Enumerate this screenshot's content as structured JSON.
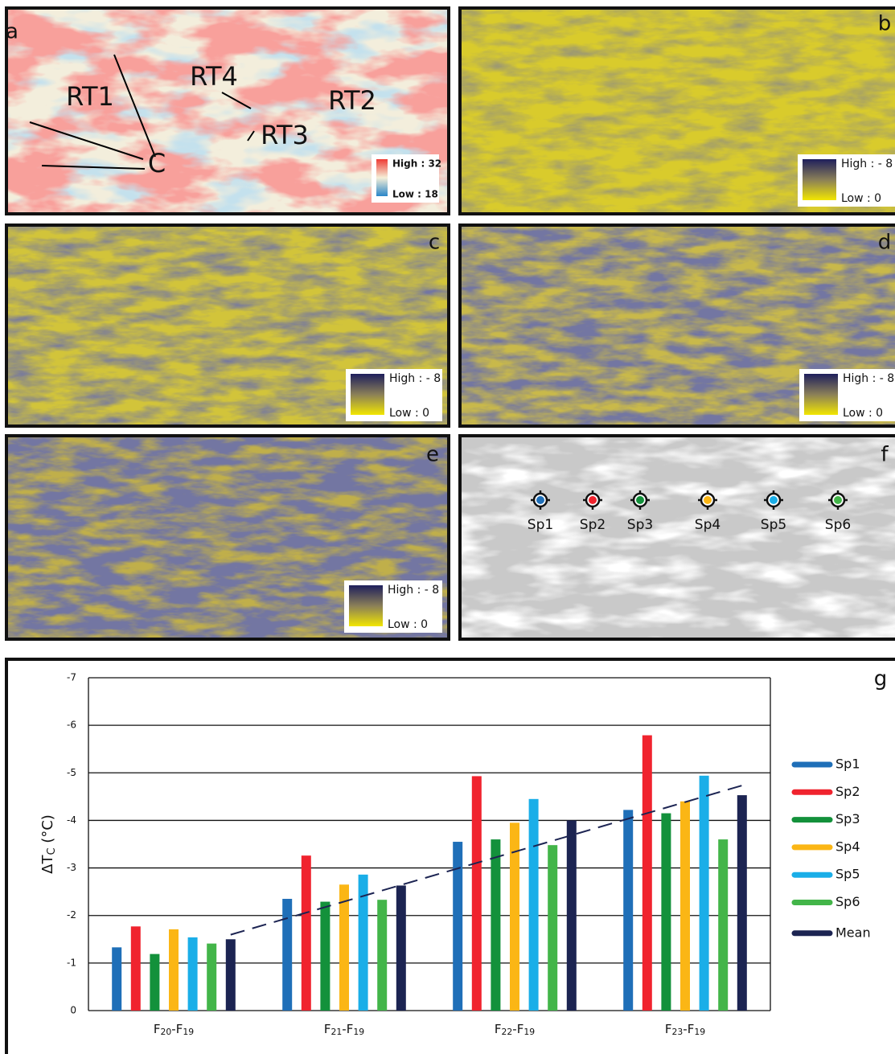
{
  "panels": [
    {
      "letter": "a",
      "legend_high": "High : 32",
      "legend_low": "Low : 18"
    },
    {
      "letter": "b",
      "legend_high": "High : - 8",
      "legend_low": "Low :   0"
    },
    {
      "letter": "c",
      "legend_high": "High : - 8",
      "legend_low": "Low :   0"
    },
    {
      "letter": "d",
      "legend_high": "High : - 8",
      "legend_low": "Low :   0"
    },
    {
      "letter": "e",
      "legend_high": "High : - 8",
      "legend_low": "Low :   0"
    },
    {
      "letter": "f"
    }
  ],
  "panel_a_labels": [
    "RT1",
    "RT4",
    "RT2",
    "RT3",
    "C"
  ],
  "panel_f_spots": [
    "Sp1",
    "Sp2",
    "Sp3",
    "Sp4",
    "Sp5",
    "Sp6"
  ],
  "chart_data": {
    "type": "bar",
    "panel_letter": "g",
    "y_label": "ΔTC (°C)",
    "categories": [
      "F20-F19",
      "F21-F19",
      "F22-F19",
      "F23-F19"
    ],
    "series": [
      {
        "name": "Sp1",
        "color": "#1f6fb8",
        "values": [
          -1.33,
          -2.35,
          -3.55,
          -4.22
        ]
      },
      {
        "name": "Sp2",
        "color": "#f0232e",
        "values": [
          -1.77,
          -3.26,
          -4.93,
          -5.79
        ]
      },
      {
        "name": "Sp3",
        "color": "#13913b",
        "values": [
          -1.19,
          -2.29,
          -3.6,
          -4.15
        ]
      },
      {
        "name": "Sp4",
        "color": "#fbb615",
        "values": [
          -1.71,
          -2.65,
          -3.95,
          -4.4
        ]
      },
      {
        "name": "Sp5",
        "color": "#1aaee8",
        "values": [
          -1.54,
          -2.86,
          -4.45,
          -4.94
        ]
      },
      {
        "name": "Sp6",
        "color": "#43b549",
        "values": [
          -1.41,
          -2.33,
          -3.48,
          -3.6
        ]
      },
      {
        "name": "Mean",
        "color": "#1c2452",
        "values": [
          -1.5,
          -2.63,
          -4.0,
          -4.53
        ]
      }
    ],
    "ylim": [
      0,
      -7
    ],
    "yticks": [
      0,
      -1,
      -2,
      -3,
      -4,
      -5,
      -6,
      -7
    ],
    "grid": true,
    "trend_line": true
  }
}
